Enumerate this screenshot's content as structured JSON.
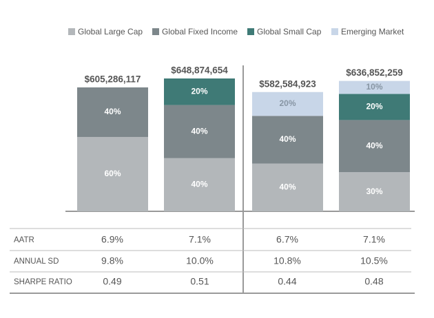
{
  "chart_data": {
    "type": "stacked-bar",
    "totals": {
      "values": [
        605286117,
        648874654,
        582584923,
        636852259
      ],
      "value_labels": [
        "$605,286,117",
        "$648,874,654",
        "$582,584,923",
        "$636,852,259"
      ]
    },
    "series": [
      {
        "name": "Global Large Cap",
        "color": "#b3b7ba",
        "values": [
          60,
          40,
          40,
          30
        ],
        "value_labels": [
          "60%",
          "40%",
          "40%",
          "30%"
        ]
      },
      {
        "name": "Global Fixed Income",
        "color": "#7d878b",
        "values": [
          40,
          40,
          40,
          40
        ],
        "value_labels": [
          "40%",
          "40%",
          "40%",
          "40%"
        ]
      },
      {
        "name": "Global Small Cap",
        "color": "#3f7a76",
        "values": [
          null,
          20,
          null,
          20
        ],
        "value_labels": [
          null,
          "20%",
          null,
          "20%"
        ]
      },
      {
        "name": "Emerging Market",
        "color": "#c8d6e8",
        "values": [
          null,
          null,
          20,
          10
        ],
        "value_labels": [
          null,
          null,
          "20%",
          "10%"
        ]
      }
    ]
  },
  "table": {
    "rows": [
      [
        "AATR",
        "6.9%",
        "7.1%",
        "6.7%",
        "7.1%"
      ],
      [
        "ANNUAL SD",
        "9.8%",
        "10.0%",
        "10.8%",
        "10.5%"
      ],
      [
        "SHARPE RATIO",
        "0.49",
        "0.51",
        "0.44",
        "0.48"
      ]
    ]
  }
}
